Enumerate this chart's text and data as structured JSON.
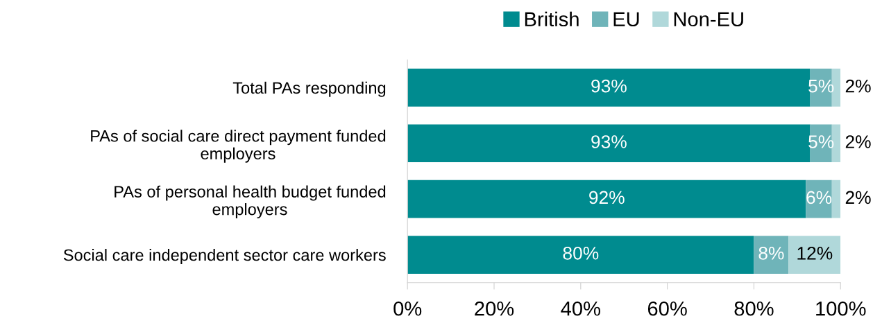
{
  "chart_data": {
    "type": "bar",
    "orientation": "horizontal",
    "stacked": true,
    "categories": [
      "Total PAs responding",
      "PAs of social care direct payment funded\nemployers",
      "PAs of personal health budget funded\nemployers",
      "Social care independent sector care workers"
    ],
    "series": [
      {
        "name": "British",
        "color": "#008b8f",
        "values": [
          93,
          93,
          92,
          80
        ],
        "value_labels": [
          "93%",
          "93%",
          "92%",
          "80%"
        ]
      },
      {
        "name": "EU",
        "color": "#6fb4b9",
        "values": [
          5,
          5,
          6,
          8
        ],
        "value_labels": [
          "5%",
          "5%",
          "6%",
          "8%"
        ]
      },
      {
        "name": "Non-EU",
        "color": "#b0d8da",
        "values": [
          2,
          2,
          2,
          12
        ],
        "value_labels": [
          "2%",
          "2%",
          "2%",
          "12%"
        ]
      }
    ],
    "xlim": [
      0,
      100
    ],
    "xticks": [
      {
        "value": 0,
        "label": "0%"
      },
      {
        "value": 20,
        "label": "20%"
      },
      {
        "value": 40,
        "label": "40%"
      },
      {
        "value": 60,
        "label": "60%"
      },
      {
        "value": 80,
        "label": "80%"
      },
      {
        "value": 100,
        "label": "100%"
      }
    ],
    "legend": "top",
    "grid": false
  }
}
